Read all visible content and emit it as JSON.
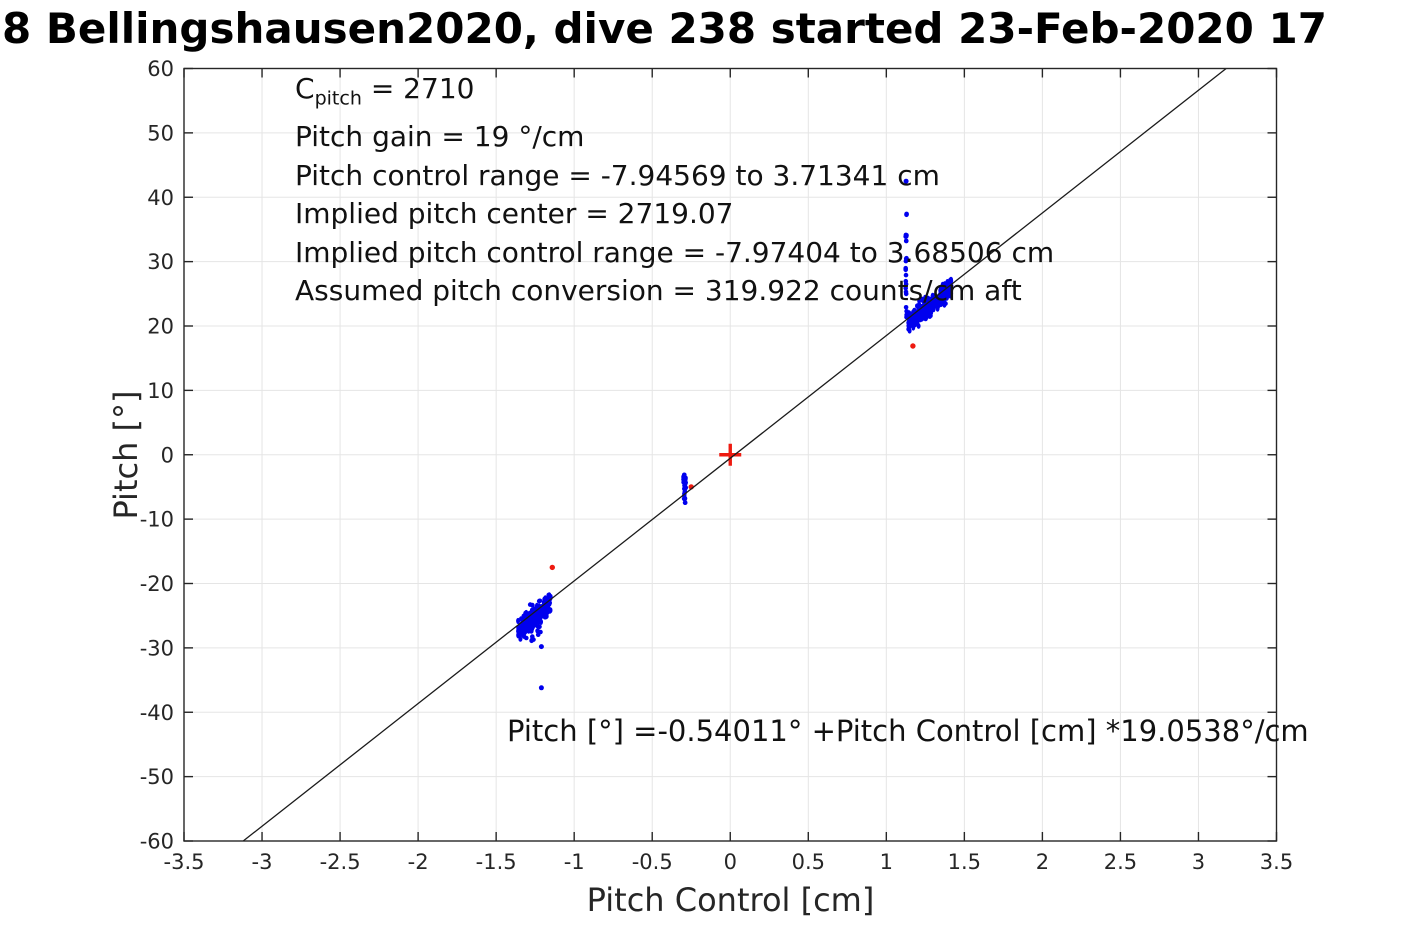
{
  "title": "8 Bellingshausen2020, dive 238 started 23-Feb-2020 17",
  "annotations": {
    "c_base": "C",
    "c_sub": "pitch",
    "c_rest": " = 2710",
    "lines": [
      "Pitch gain = 19 °/cm",
      "Pitch control range = -7.94569 to 3.71341 cm",
      "Implied pitch center = 2719.07",
      "Implied pitch control range = -7.97404 to 3.68506 cm",
      "Assumed pitch conversion = 319.922 counts/cm aft"
    ],
    "equation": "Pitch [°] =-0.54011° +Pitch Control [cm] *19.0538°/cm"
  },
  "chart_data": {
    "type": "scatter",
    "title": "8 Bellingshausen2020, dive 238 started 23-Feb-2020 17",
    "xlabel": "Pitch Control [cm]",
    "ylabel": "Pitch [°]",
    "xlim": [
      -3.5,
      3.5
    ],
    "ylim": [
      -60,
      60
    ],
    "xticks": [
      "-3.5",
      "-3",
      "-2.5",
      "-2",
      "-1.5",
      "-1",
      "-0.5",
      "0",
      "0.5",
      "1",
      "1.5",
      "2",
      "2.5",
      "3",
      "3.5"
    ],
    "yticks": [
      "-60",
      "-50",
      "-40",
      "-30",
      "-20",
      "-10",
      "0",
      "10",
      "20",
      "30",
      "40",
      "50",
      "60"
    ],
    "grid": true,
    "legend": "none",
    "fit_line": {
      "intercept": -0.54011,
      "slope": 19.0538
    },
    "origin_marker": {
      "x": 0,
      "y": 0,
      "marker": "+"
    },
    "seed": 20,
    "point_clusters": {
      "bands": [
        {
          "x_min": -1.36,
          "x_max": -1.15,
          "n": 240,
          "jitter_lo": -2.6,
          "jitter_hi": 1.2
        },
        {
          "x_min": 1.14,
          "x_max": 1.42,
          "n": 280,
          "jitter_lo": -2.6,
          "jitter_hi": 1.4
        }
      ],
      "columns": [
        {
          "x": -1.315,
          "y_lo": -28.6,
          "y_hi": -24.5,
          "n": 14,
          "jx": 0.01
        },
        {
          "x": -1.27,
          "y_lo": -29.2,
          "y_hi": -23.0,
          "n": 16,
          "jx": 0.012
        },
        {
          "x": -1.225,
          "y_lo": -28.0,
          "y_hi": -22.5,
          "n": 12,
          "jx": 0.01
        },
        {
          "x": -0.292,
          "y_lo": -5.6,
          "y_hi": -2.9,
          "n": 22,
          "jx": 0.008
        },
        {
          "x": -0.292,
          "y_lo": -7.9,
          "y_hi": -5.6,
          "n": 8,
          "jx": 0.004
        },
        {
          "x": 1.127,
          "y_lo": 21.3,
          "y_hi": 27.5,
          "n": 10,
          "jx": 0.004
        },
        {
          "x": 1.127,
          "y_lo": 27.5,
          "y_hi": 31.5,
          "n": 6,
          "jx": 0.003
        },
        {
          "x": 1.127,
          "y_lo": 33.0,
          "y_hi": 37.8,
          "n": 9,
          "jx": 0.003
        }
      ],
      "blue_singles": [
        [
          -1.21,
          -29.8
        ],
        [
          -1.21,
          -36.2
        ],
        [
          1.127,
          42.5
        ]
      ],
      "red_points": [
        [
          -1.14,
          -17.5
        ],
        [
          -0.25,
          -5.0
        ],
        [
          1.17,
          16.9
        ]
      ]
    },
    "colors": {
      "points": "#0000ee",
      "outliers": "#ee1a10",
      "fit_line": "#1a1a1a",
      "grid": "#e5e5e5",
      "axis": "#262626",
      "tick_label": "#262626",
      "text": "#111111"
    }
  }
}
